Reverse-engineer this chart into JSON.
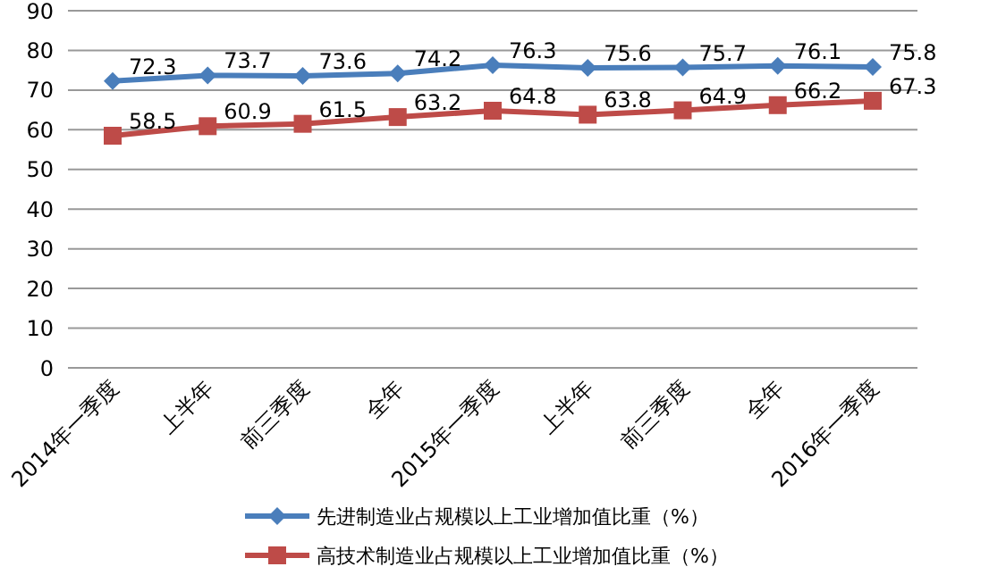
{
  "chart_data": {
    "type": "line",
    "categories": [
      "2014年一季度",
      "上半年",
      "前三季度",
      "全年",
      "2015年一季度",
      "上半年",
      "前三季度",
      "全年",
      "2016年一季度"
    ],
    "series": [
      {
        "name": "先进制造业占规模以上工业增加值比重（%）",
        "color": "#4a7ebb",
        "marker": "diamond",
        "values": [
          72.3,
          73.7,
          73.6,
          74.2,
          76.3,
          75.6,
          75.7,
          76.1,
          75.8
        ]
      },
      {
        "name": "高技术制造业占规模以上工业增加值比重（%）",
        "color": "#be4b48",
        "marker": "square",
        "values": [
          58.5,
          60.9,
          61.5,
          63.2,
          64.8,
          63.8,
          64.9,
          66.2,
          67.3
        ]
      }
    ],
    "ylim": [
      0,
      90
    ],
    "yticks": [
      0,
      10,
      20,
      30,
      40,
      50,
      60,
      70,
      80,
      90
    ],
    "grid": "y",
    "legend": "bottom",
    "data_labels": true,
    "line_style": "solid"
  }
}
